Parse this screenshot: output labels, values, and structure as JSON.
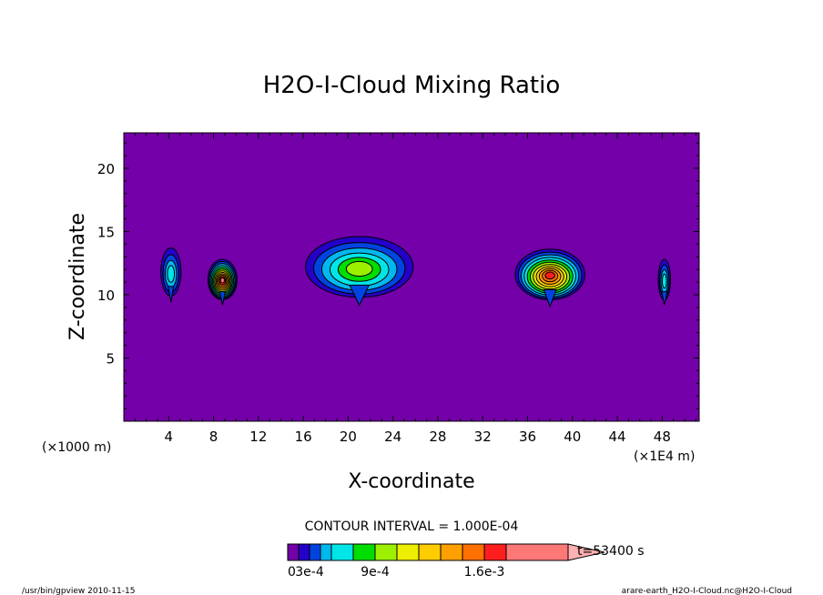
{
  "chart_data": {
    "type": "contour",
    "title": "H2O-I-Cloud Mixing Ratio",
    "xlabel": "X-coordinate",
    "ylabel": "Z-coordinate",
    "x_unit": "(×1E4 m)",
    "y_unit": "(×1000 m)",
    "xlim": [
      0,
      51.3
    ],
    "ylim": [
      0,
      22.8
    ],
    "x_ticks": [
      4,
      8,
      12,
      16,
      20,
      24,
      28,
      32,
      36,
      40,
      44,
      48
    ],
    "y_ticks": [
      5,
      10,
      15,
      20
    ],
    "contour_interval": "CONTOUR INTERVAL = 1.000E-04",
    "time_label": "t=53400 s",
    "colorbar": {
      "colors": [
        "#7300a8",
        "#2400c8",
        "#0044e0",
        "#00b8f0",
        "#00e6e6",
        "#00dd00",
        "#9cf000",
        "#eeee00",
        "#ffcc00",
        "#ffa000",
        "#ff7000",
        "#ff1e1e",
        "#ff7878",
        "#ffb0b0"
      ],
      "labels": [
        {
          "text": "0",
          "at": 0
        },
        {
          "text": "3e-4",
          "at": 3
        },
        {
          "text": "9e-4",
          "at": 9
        },
        {
          "text": "1.6e-3",
          "at": 16
        }
      ]
    },
    "background_color": "#7300a8",
    "cloud_cells": [
      {
        "x": 4.2,
        "z": 11.8,
        "max_level": 4
      },
      {
        "x": 8.8,
        "z": 11.2,
        "max_level": 12
      },
      {
        "x": 21.0,
        "z": 12.2,
        "max_level": 6
      },
      {
        "x": 38.0,
        "z": 11.6,
        "max_level": 11
      },
      {
        "x": 48.2,
        "z": 11.2,
        "max_level": 4
      }
    ]
  },
  "footer": {
    "left": "/usr/bin/gpview  2010-11-15",
    "right": "arare-earth_H2O-I-Cloud.nc@H2O-I-Cloud"
  }
}
